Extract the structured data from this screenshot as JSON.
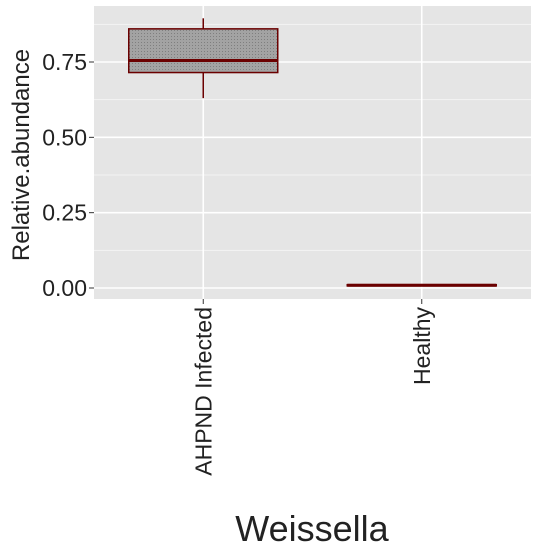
{
  "chart_data": {
    "type": "boxplot",
    "title": "Weissella",
    "xlabel": "",
    "ylabel": "Relative.abundance",
    "categories": [
      "AHPND Infected",
      "Healthy"
    ],
    "y_ticks": [
      0.0,
      0.25,
      0.5,
      0.75
    ],
    "y_tick_labels": [
      "0.00",
      "0.25",
      "0.50",
      "0.75"
    ],
    "ylim": [
      -0.04,
      0.94
    ],
    "grid": true,
    "legend": "none",
    "boxes": [
      {
        "category": "AHPND Infected",
        "whisker_low": 0.63,
        "q1": 0.715,
        "median": 0.755,
        "q3": 0.86,
        "whisker_high": 0.895
      },
      {
        "category": "Healthy",
        "whisker_low": 0.005,
        "q1": 0.007,
        "median": 0.009,
        "q3": 0.011,
        "whisker_high": 0.013
      }
    ],
    "colors": {
      "box_fill": "#9e9e9e",
      "box_stroke": "#6b0000",
      "panel_bg": "#e5e5e5",
      "grid": "#ffffff"
    }
  }
}
